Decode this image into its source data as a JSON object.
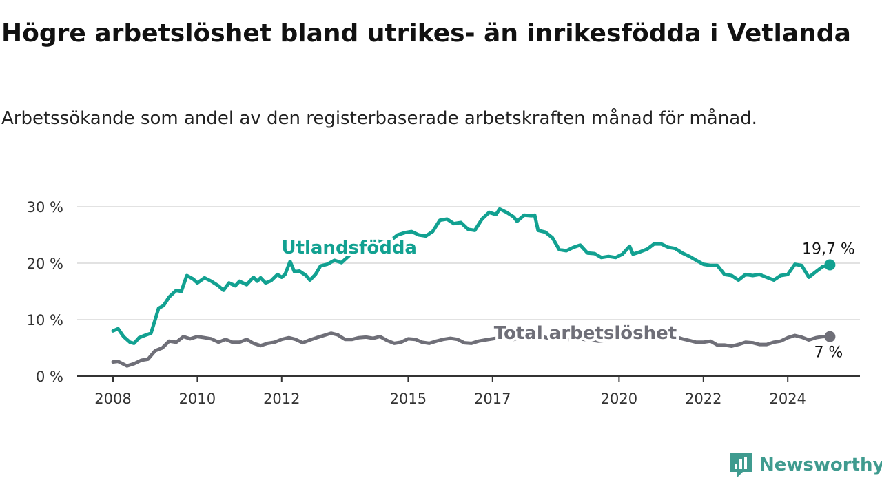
{
  "title": "Högre arbetslöshet bland utrikes- än inrikesfödda i Vetlanda",
  "subtitle": "Arbetssökande som andel av den registerbaserade arbetskraften månad för månad.",
  "brand": {
    "name": "Newsworthy",
    "icon": "newsworthy-logo-icon"
  },
  "colors": {
    "foreign": "#12a191",
    "total": "#6f6f78",
    "grid": "#d9d9d9",
    "axis": "#333333"
  },
  "chart_data": {
    "type": "line",
    "title": "Högre arbetslöshet bland utrikes- än inrikesfödda i Vetlanda",
    "xlabel": "",
    "ylabel": "",
    "ylim": [
      0,
      30
    ],
    "xlim": [
      2008,
      2025.17
    ],
    "grid": "horizontal",
    "yticks": [
      {
        "value": 0,
        "label": "0 %"
      },
      {
        "value": 10,
        "label": "10 %"
      },
      {
        "value": 20,
        "label": "20 %"
      },
      {
        "value": 30,
        "label": "30 %"
      }
    ],
    "xticks": [
      {
        "value": 2008,
        "label": "2008"
      },
      {
        "value": 2010,
        "label": "2010"
      },
      {
        "value": 2012,
        "label": "2012"
      },
      {
        "value": 2015,
        "label": "2015"
      },
      {
        "value": 2017,
        "label": "2017"
      },
      {
        "value": 2020,
        "label": "2020"
      },
      {
        "value": 2022,
        "label": "2022"
      },
      {
        "value": 2024,
        "label": "2024"
      }
    ],
    "series": [
      {
        "name": "Utlandsfödda",
        "color": "#12a191",
        "end_label": "19,7 %",
        "points": [
          [
            2008.0,
            8.0
          ],
          [
            2008.12,
            8.4
          ],
          [
            2008.25,
            7.0
          ],
          [
            2008.4,
            6.0
          ],
          [
            2008.5,
            5.8
          ],
          [
            2008.62,
            6.8
          ],
          [
            2008.75,
            7.2
          ],
          [
            2008.9,
            7.6
          ],
          [
            2009.0,
            10.0
          ],
          [
            2009.08,
            12.0
          ],
          [
            2009.2,
            12.5
          ],
          [
            2009.33,
            14.0
          ],
          [
            2009.5,
            15.2
          ],
          [
            2009.62,
            15.0
          ],
          [
            2009.75,
            17.8
          ],
          [
            2009.9,
            17.2
          ],
          [
            2010.0,
            16.5
          ],
          [
            2010.17,
            17.4
          ],
          [
            2010.33,
            16.8
          ],
          [
            2010.5,
            16.0
          ],
          [
            2010.62,
            15.2
          ],
          [
            2010.75,
            16.5
          ],
          [
            2010.9,
            16.0
          ],
          [
            2011.0,
            16.8
          ],
          [
            2011.17,
            16.2
          ],
          [
            2011.33,
            17.5
          ],
          [
            2011.42,
            16.8
          ],
          [
            2011.5,
            17.4
          ],
          [
            2011.62,
            16.5
          ],
          [
            2011.75,
            16.9
          ],
          [
            2011.9,
            18.0
          ],
          [
            2012.0,
            17.5
          ],
          [
            2012.08,
            18.0
          ],
          [
            2012.2,
            20.3
          ],
          [
            2012.3,
            18.5
          ],
          [
            2012.42,
            18.6
          ],
          [
            2012.58,
            17.8
          ],
          [
            2012.67,
            17.0
          ],
          [
            2012.8,
            18.0
          ],
          [
            2012.92,
            19.5
          ],
          [
            2013.08,
            19.8
          ],
          [
            2013.25,
            20.5
          ],
          [
            2013.42,
            20.1
          ],
          [
            2013.58,
            21.2
          ],
          [
            2013.75,
            22.5
          ],
          [
            2013.92,
            23.5
          ],
          [
            2014.08,
            24.3
          ],
          [
            2014.25,
            24.0
          ],
          [
            2014.42,
            23.6
          ],
          [
            2014.58,
            24.0
          ],
          [
            2014.75,
            25.0
          ],
          [
            2014.92,
            25.4
          ],
          [
            2015.08,
            25.6
          ],
          [
            2015.25,
            25.0
          ],
          [
            2015.42,
            24.8
          ],
          [
            2015.58,
            25.6
          ],
          [
            2015.75,
            27.6
          ],
          [
            2015.92,
            27.8
          ],
          [
            2016.08,
            27.0
          ],
          [
            2016.25,
            27.2
          ],
          [
            2016.42,
            26.0
          ],
          [
            2016.58,
            25.8
          ],
          [
            2016.75,
            27.8
          ],
          [
            2016.92,
            29.0
          ],
          [
            2017.08,
            28.6
          ],
          [
            2017.17,
            29.6
          ],
          [
            2017.33,
            29.0
          ],
          [
            2017.5,
            28.2
          ],
          [
            2017.58,
            27.4
          ],
          [
            2017.75,
            28.5
          ],
          [
            2017.92,
            28.4
          ],
          [
            2018.0,
            28.5
          ],
          [
            2018.08,
            25.8
          ],
          [
            2018.25,
            25.5
          ],
          [
            2018.42,
            24.5
          ],
          [
            2018.58,
            22.4
          ],
          [
            2018.75,
            22.2
          ],
          [
            2018.92,
            22.8
          ],
          [
            2019.08,
            23.2
          ],
          [
            2019.25,
            21.8
          ],
          [
            2019.42,
            21.7
          ],
          [
            2019.58,
            21.0
          ],
          [
            2019.75,
            21.2
          ],
          [
            2019.92,
            21.0
          ],
          [
            2020.08,
            21.6
          ],
          [
            2020.25,
            23.0
          ],
          [
            2020.33,
            21.6
          ],
          [
            2020.5,
            22.0
          ],
          [
            2020.67,
            22.5
          ],
          [
            2020.83,
            23.4
          ],
          [
            2021.0,
            23.4
          ],
          [
            2021.17,
            22.8
          ],
          [
            2021.33,
            22.6
          ],
          [
            2021.5,
            21.8
          ],
          [
            2021.67,
            21.2
          ],
          [
            2021.83,
            20.5
          ],
          [
            2022.0,
            19.8
          ],
          [
            2022.17,
            19.6
          ],
          [
            2022.33,
            19.6
          ],
          [
            2022.5,
            18.0
          ],
          [
            2022.67,
            17.8
          ],
          [
            2022.83,
            17.0
          ],
          [
            2023.0,
            18.0
          ],
          [
            2023.17,
            17.8
          ],
          [
            2023.33,
            18.0
          ],
          [
            2023.5,
            17.5
          ],
          [
            2023.67,
            17.0
          ],
          [
            2023.83,
            17.8
          ],
          [
            2024.0,
            18.0
          ],
          [
            2024.17,
            19.8
          ],
          [
            2024.33,
            19.6
          ],
          [
            2024.5,
            17.5
          ],
          [
            2024.67,
            18.5
          ],
          [
            2024.83,
            19.4
          ],
          [
            2025.0,
            19.7
          ]
        ]
      },
      {
        "name": "Total arbetslöshet",
        "color": "#6f6f78",
        "end_label": "7 %",
        "points": [
          [
            2008.0,
            2.5
          ],
          [
            2008.12,
            2.6
          ],
          [
            2008.33,
            1.8
          ],
          [
            2008.5,
            2.2
          ],
          [
            2008.67,
            2.8
          ],
          [
            2008.83,
            3.0
          ],
          [
            2009.0,
            4.5
          ],
          [
            2009.17,
            5.0
          ],
          [
            2009.33,
            6.2
          ],
          [
            2009.5,
            6.0
          ],
          [
            2009.67,
            7.0
          ],
          [
            2009.83,
            6.6
          ],
          [
            2010.0,
            7.0
          ],
          [
            2010.17,
            6.8
          ],
          [
            2010.33,
            6.6
          ],
          [
            2010.5,
            6.0
          ],
          [
            2010.67,
            6.5
          ],
          [
            2010.83,
            6.0
          ],
          [
            2011.0,
            6.0
          ],
          [
            2011.17,
            6.5
          ],
          [
            2011.33,
            5.8
          ],
          [
            2011.5,
            5.4
          ],
          [
            2011.67,
            5.8
          ],
          [
            2011.83,
            6.0
          ],
          [
            2012.0,
            6.5
          ],
          [
            2012.17,
            6.8
          ],
          [
            2012.33,
            6.5
          ],
          [
            2012.5,
            5.9
          ],
          [
            2012.67,
            6.4
          ],
          [
            2012.83,
            6.8
          ],
          [
            2013.0,
            7.2
          ],
          [
            2013.17,
            7.6
          ],
          [
            2013.33,
            7.3
          ],
          [
            2013.5,
            6.5
          ],
          [
            2013.67,
            6.5
          ],
          [
            2013.83,
            6.8
          ],
          [
            2014.0,
            6.9
          ],
          [
            2014.17,
            6.7
          ],
          [
            2014.33,
            7.0
          ],
          [
            2014.5,
            6.3
          ],
          [
            2014.67,
            5.8
          ],
          [
            2014.83,
            6.0
          ],
          [
            2015.0,
            6.6
          ],
          [
            2015.17,
            6.5
          ],
          [
            2015.33,
            6.0
          ],
          [
            2015.5,
            5.8
          ],
          [
            2015.67,
            6.2
          ],
          [
            2015.83,
            6.5
          ],
          [
            2016.0,
            6.7
          ],
          [
            2016.17,
            6.5
          ],
          [
            2016.33,
            5.9
          ],
          [
            2016.5,
            5.8
          ],
          [
            2016.67,
            6.2
          ],
          [
            2016.83,
            6.4
          ],
          [
            2017.0,
            6.6
          ],
          [
            2017.17,
            6.8
          ],
          [
            2017.33,
            6.8
          ],
          [
            2017.5,
            6.5
          ],
          [
            2017.67,
            6.9
          ],
          [
            2017.83,
            7.4
          ],
          [
            2018.0,
            7.2
          ],
          [
            2018.17,
            7.0
          ],
          [
            2018.33,
            6.7
          ],
          [
            2018.5,
            6.5
          ],
          [
            2018.67,
            6.3
          ],
          [
            2018.83,
            6.5
          ],
          [
            2019.0,
            6.7
          ],
          [
            2019.17,
            6.5
          ],
          [
            2019.33,
            6.4
          ],
          [
            2019.5,
            6.2
          ],
          [
            2019.67,
            6.3
          ],
          [
            2019.83,
            6.5
          ],
          [
            2020.0,
            6.8
          ],
          [
            2020.17,
            7.2
          ],
          [
            2020.33,
            7.5
          ],
          [
            2020.5,
            7.2
          ],
          [
            2020.67,
            7.0
          ],
          [
            2020.83,
            8.2
          ],
          [
            2021.0,
            7.8
          ],
          [
            2021.17,
            7.4
          ],
          [
            2021.33,
            7.0
          ],
          [
            2021.5,
            6.6
          ],
          [
            2021.67,
            6.3
          ],
          [
            2021.83,
            6.0
          ],
          [
            2022.0,
            6.0
          ],
          [
            2022.17,
            6.2
          ],
          [
            2022.33,
            5.5
          ],
          [
            2022.5,
            5.5
          ],
          [
            2022.67,
            5.3
          ],
          [
            2022.83,
            5.6
          ],
          [
            2023.0,
            6.0
          ],
          [
            2023.17,
            5.9
          ],
          [
            2023.33,
            5.6
          ],
          [
            2023.5,
            5.6
          ],
          [
            2023.67,
            6.0
          ],
          [
            2023.83,
            6.2
          ],
          [
            2024.0,
            6.8
          ],
          [
            2024.17,
            7.2
          ],
          [
            2024.33,
            6.9
          ],
          [
            2024.5,
            6.4
          ],
          [
            2024.67,
            6.8
          ],
          [
            2024.83,
            7.0
          ],
          [
            2025.0,
            7.0
          ]
        ]
      }
    ],
    "annotations": [
      {
        "text": "Utlandsfödda",
        "series": "Utlandsfödda",
        "x": 2013.6,
        "y": 21.7
      },
      {
        "text": "Total arbetslöshet",
        "series": "Total arbetslöshet",
        "x": 2019.2,
        "y": 6.6
      }
    ]
  }
}
